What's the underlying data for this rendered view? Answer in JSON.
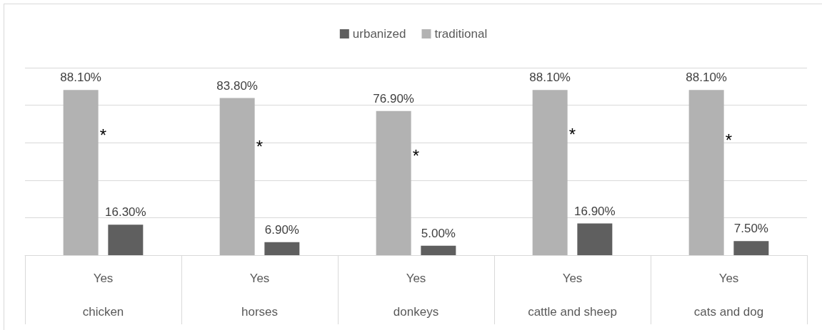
{
  "chart_data": {
    "type": "bar",
    "categories": [
      "Yes\nchicken",
      "Yes\nhorses",
      "Yes\ndonkeys",
      "Yes\ncattle and sheep",
      "Yes\ncats and dog"
    ],
    "series": [
      {
        "name": "traditional",
        "color": "#b2b2b2",
        "values": [
          88.1,
          83.8,
          76.9,
          88.1,
          88.1
        ],
        "value_labels": [
          "88.10%",
          "83.80%",
          "76.90%",
          "88.10%",
          "88.10%"
        ]
      },
      {
        "name": "urbanized",
        "color": "#5f5f5f",
        "values": [
          16.3,
          6.9,
          5.0,
          16.9,
          7.5
        ],
        "value_labels": [
          "16.30%",
          "6.90%",
          "5.00%",
          "16.90%",
          "7.50%"
        ]
      }
    ],
    "ylim": [
      0,
      100
    ],
    "yticks": [
      {
        "value": 0,
        "label": null
      },
      {
        "value": 20,
        "label": null
      },
      {
        "value": 40,
        "label": null
      },
      {
        "value": 60,
        "label": null
      },
      {
        "value": 80,
        "label": null
      },
      {
        "value": 100,
        "label": null
      }
    ],
    "annotations": [
      "*",
      "*",
      "*",
      "*",
      "*"
    ],
    "grid": "y",
    "legend": "top",
    "tick_labels": "x"
  }
}
